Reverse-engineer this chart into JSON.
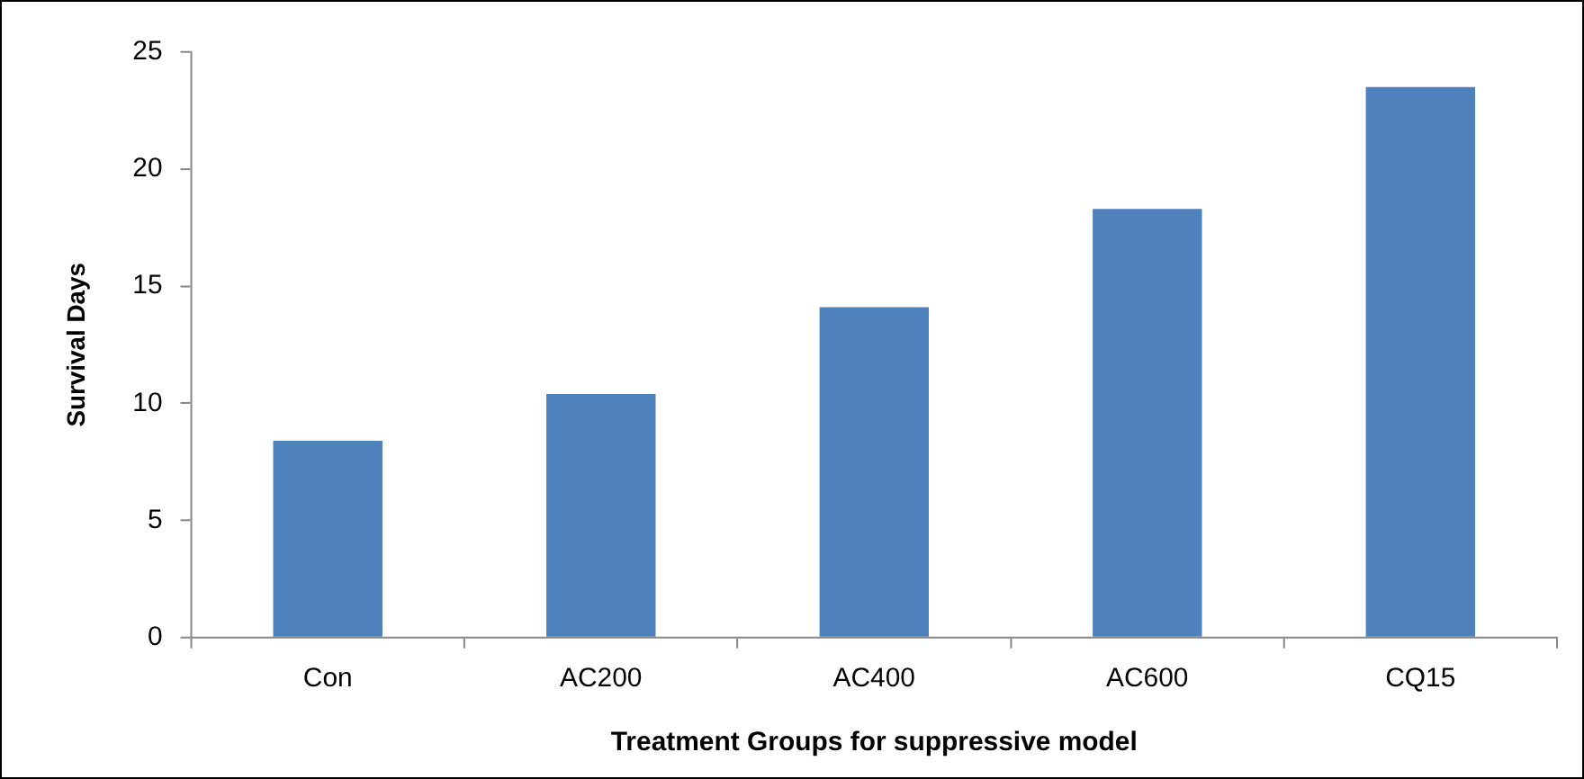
{
  "chart_data": {
    "type": "bar",
    "xlabel": "Treatment Groups for suppressive model",
    "ylabel": "Survival Days",
    "categories": [
      "Con",
      "AC200",
      "AC400",
      "AC600",
      "CQ15"
    ],
    "values": [
      8.4,
      10.4,
      14.1,
      18.3,
      23.5
    ],
    "color": "#4f81bd",
    "ylim": [
      0,
      25
    ],
    "yticks": [
      0,
      5,
      10,
      15,
      20,
      25
    ]
  }
}
